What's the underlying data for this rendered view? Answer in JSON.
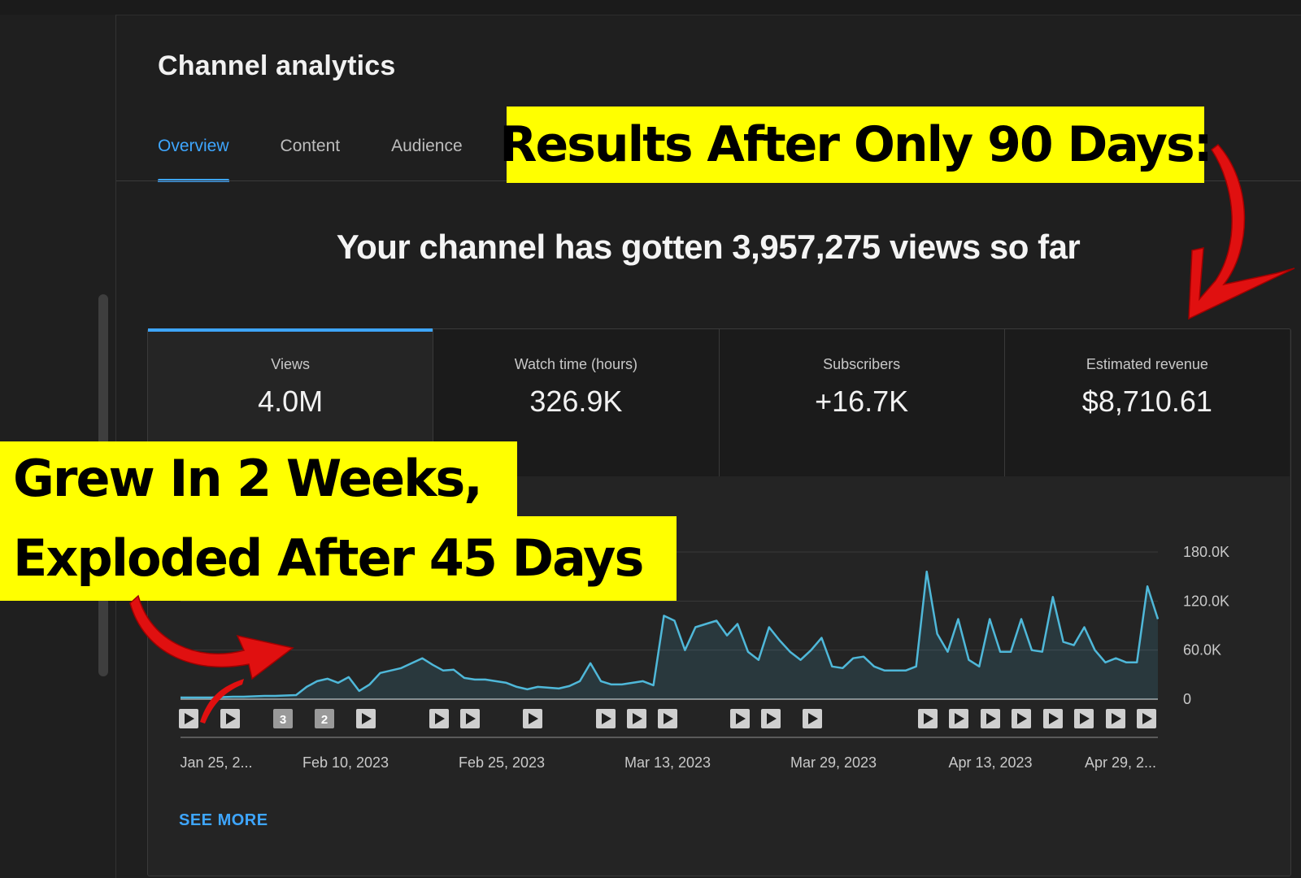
{
  "page": {
    "title": "Channel analytics",
    "tabs": [
      {
        "label": "Overview",
        "active": true
      },
      {
        "label": "Content",
        "active": false
      },
      {
        "label": "Audience",
        "active": false
      }
    ],
    "views_total_text": "Your channel has gotten 3,957,275 views so far",
    "see_more_label": "SEE MORE"
  },
  "metrics": [
    {
      "label": "Views",
      "value": "4.0M",
      "active": true
    },
    {
      "label": "Watch time (hours)",
      "value": "326.9K",
      "active": false
    },
    {
      "label": "Subscribers",
      "value": "+16.7K",
      "active": false
    },
    {
      "label": "Estimated revenue",
      "value": "$8,710.61",
      "active": false
    }
  ],
  "callouts": {
    "top": "Results After Only 90 Days:",
    "left_line1": "Grew In 2 Weeks,",
    "left_line2": "Exploded After 45 Days"
  },
  "colors": {
    "accent": "#3ea6ff",
    "line": "#4fb8d9",
    "callout_bg": "#ffff00",
    "arrow": "#e01010"
  },
  "chart_data": {
    "type": "line",
    "series_name": "",
    "y_ticks": [
      "180.0K",
      "120.0K",
      "60.0K",
      "0"
    ],
    "y_tick_values": [
      180000,
      120000,
      60000,
      0
    ],
    "ylim": [
      0,
      180000
    ],
    "x_labels": [
      "Jan 25, 2...",
      "Feb 10, 2023",
      "Feb 25, 2023",
      "Mar 13, 2023",
      "Mar 29, 2023",
      "Apr 13, 2023",
      "Apr 29, 2..."
    ],
    "values": [
      2000,
      2000,
      2000,
      2000,
      2500,
      3000,
      3000,
      3500,
      4000,
      4000,
      4500,
      5000,
      15000,
      22000,
      25000,
      20000,
      27000,
      10000,
      18000,
      32000,
      35000,
      38000,
      44000,
      50000,
      42000,
      35000,
      36000,
      26000,
      24000,
      24000,
      22000,
      20000,
      15000,
      12000,
      15000,
      14000,
      13000,
      16000,
      22000,
      44000,
      22000,
      18000,
      18000,
      20000,
      22000,
      17000,
      102000,
      96000,
      60000,
      88000,
      92000,
      96000,
      78000,
      92000,
      58000,
      48000,
      88000,
      72000,
      58000,
      48000,
      60000,
      75000,
      40000,
      38000,
      50000,
      52000,
      40000,
      35000,
      35000,
      35000,
      40000,
      156000,
      80000,
      58000,
      98000,
      48000,
      40000,
      98000,
      58000,
      58000,
      98000,
      60000,
      58000,
      125000,
      70000,
      66000,
      88000,
      60000,
      45000,
      50000,
      45000,
      45000,
      138000,
      98000
    ],
    "video_markers": [
      {
        "kind": "play"
      },
      {
        "kind": "play"
      },
      {
        "kind": "count",
        "label": "3"
      },
      {
        "kind": "count",
        "label": "2"
      },
      {
        "kind": "play"
      },
      {
        "kind": "play"
      },
      {
        "kind": "play"
      },
      {
        "kind": "play"
      },
      {
        "kind": "play"
      },
      {
        "kind": "play"
      },
      {
        "kind": "play"
      },
      {
        "kind": "play"
      },
      {
        "kind": "play"
      },
      {
        "kind": "play"
      },
      {
        "kind": "play"
      },
      {
        "kind": "play"
      },
      {
        "kind": "play"
      },
      {
        "kind": "play"
      },
      {
        "kind": "play"
      },
      {
        "kind": "play"
      },
      {
        "kind": "play"
      },
      {
        "kind": "play"
      },
      {
        "kind": "play"
      }
    ],
    "grid": true
  }
}
